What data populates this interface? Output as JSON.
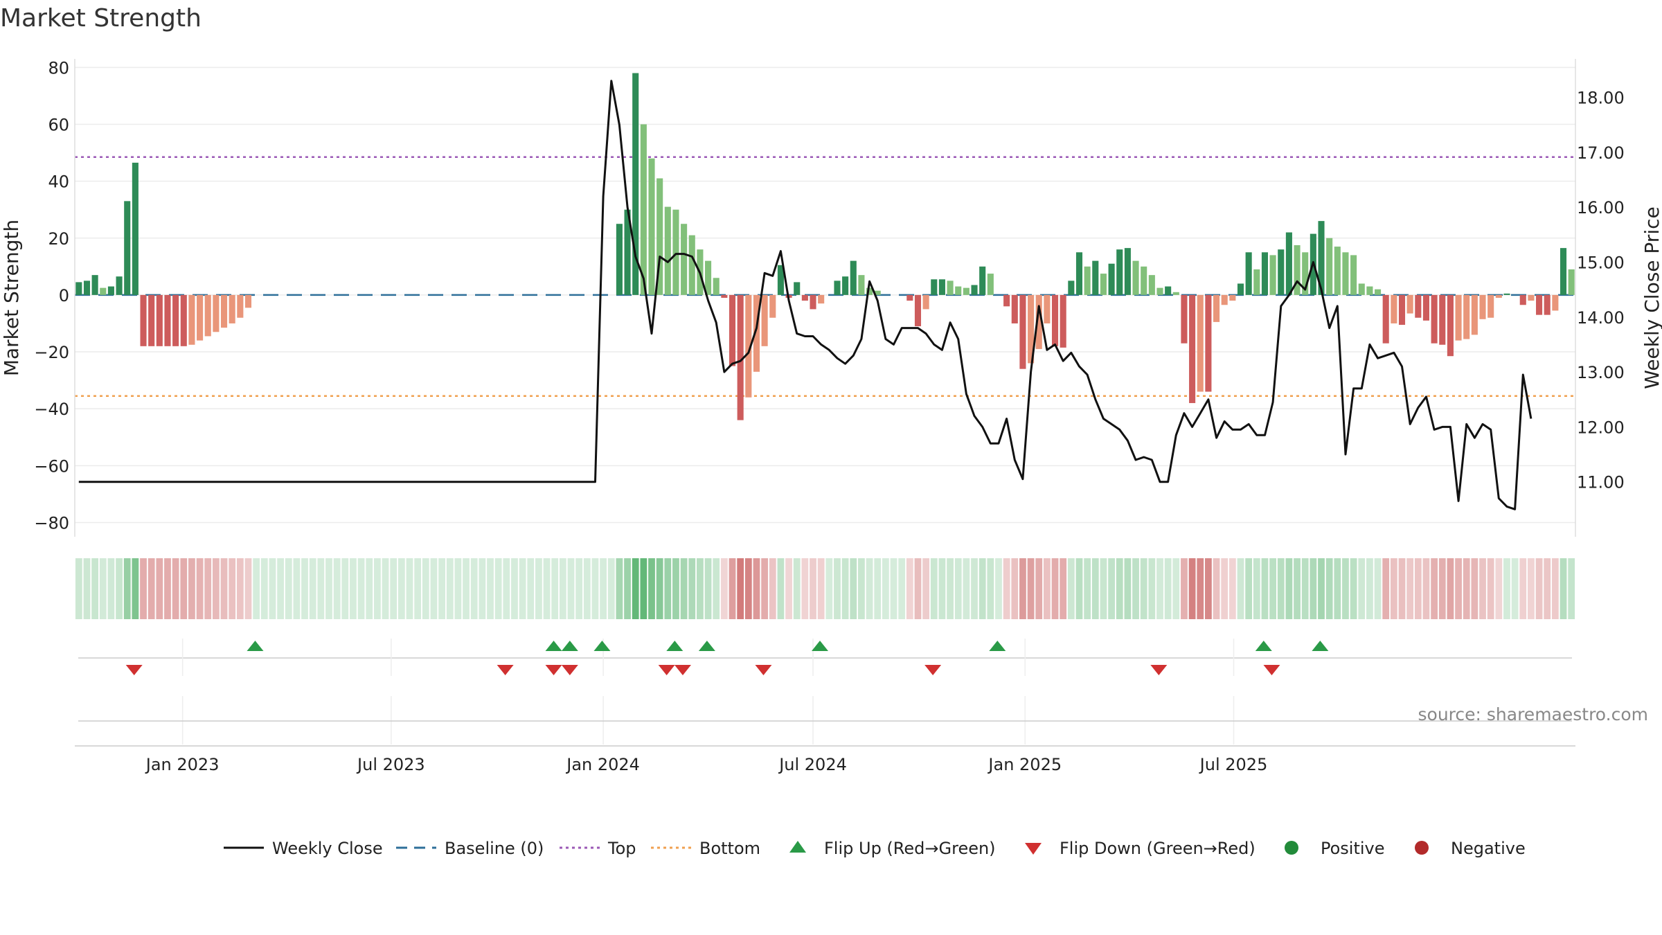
{
  "title": "Market Strength",
  "source": "source: sharemaestro.com",
  "chart_data": {
    "type": "bar",
    "ylabel": "Market Strength",
    "y2label": "Weekly Close Price",
    "ylim": [
      -85,
      83
    ],
    "y2lim": [
      10.0,
      18.7
    ],
    "yticks": [
      80,
      60,
      40,
      20,
      0,
      -20,
      -40,
      -60,
      -80
    ],
    "ytick_labels": [
      "80",
      "60",
      "40",
      "20",
      "0",
      "−20",
      "−40",
      "−60",
      "−80"
    ],
    "y2ticks": [
      18,
      17,
      16,
      15,
      14,
      13,
      12,
      11
    ],
    "y2tick_labels": [
      "18.00",
      "17.00",
      "16.00",
      "15.00",
      "14.00",
      "13.00",
      "12.00",
      "11.00"
    ],
    "x_start": "2022-10-03",
    "xtick_dates": [
      "2023-01-01",
      "2023-07-01",
      "2024-01-01",
      "2024-07-01",
      "2025-01-01",
      "2025-07-01"
    ],
    "xtick_labels": [
      "Jan 2023",
      "Jul 2023",
      "Jan 2024",
      "Jul 2024",
      "Jan 2025",
      "Jul 2025"
    ],
    "top_level": 48.5,
    "bottom_level": -35.5,
    "baseline": 0,
    "strength": [
      4.5,
      5,
      7,
      2.5,
      3,
      6.5,
      33,
      46.5,
      -18,
      -18,
      -18,
      -18,
      -18,
      -18,
      -17.5,
      -16,
      -14.5,
      -13,
      -11.5,
      -10,
      -8,
      -4.5,
      0,
      0,
      0,
      0,
      0,
      0,
      0,
      0,
      0,
      0,
      0,
      0,
      0,
      0,
      0,
      0,
      0,
      0,
      0,
      0,
      0,
      0,
      0,
      0,
      0,
      0,
      0,
      0,
      0,
      0,
      0,
      0,
      0,
      0,
      0,
      0,
      0,
      0,
      0,
      0,
      0,
      0,
      0,
      0,
      0,
      25,
      30,
      78,
      60,
      48,
      41,
      31,
      30,
      25,
      21,
      16,
      12,
      6,
      -1,
      -25,
      -44,
      -36,
      -27,
      -18,
      -8,
      10.5,
      -1,
      4.5,
      -2,
      -5,
      -3,
      0,
      5,
      6.5,
      12,
      7,
      2.5,
      1.5,
      0,
      0,
      0,
      -2,
      -11,
      -5,
      5.5,
      5.5,
      5,
      3,
      2.5,
      3.5,
      10,
      7.5,
      0,
      -4,
      -10,
      -26,
      -24,
      -19,
      -10,
      -18,
      -18.5,
      5,
      15,
      10,
      12,
      7.5,
      11,
      16,
      16.5,
      12,
      10,
      7,
      2.5,
      3,
      1,
      -17,
      -38,
      -34,
      -34,
      -9.5,
      -3.5,
      -2,
      4,
      15,
      9,
      15,
      14,
      16,
      22,
      17.5,
      15,
      21.5,
      26,
      20,
      17,
      15,
      14,
      4,
      3,
      2,
      -17,
      -10,
      -10.5,
      -6.5,
      -8,
      -9,
      -17,
      -17.5,
      -21.5,
      -16,
      -15.5,
      -14,
      -8.5,
      -8,
      -1,
      0.5,
      0,
      -3.5,
      -2,
      -7,
      -7,
      -5.5,
      16.5,
      9
    ],
    "price": [
      11.0,
      11.0,
      11.0,
      11.0,
      11.0,
      11.0,
      11.0,
      11.0,
      11.0,
      11.0,
      11.0,
      11.0,
      11.0,
      11.0,
      11.0,
      11.0,
      11.0,
      11.0,
      11.0,
      11.0,
      11.0,
      11.0,
      11.0,
      11.0,
      11.0,
      11.0,
      11.0,
      11.0,
      11.0,
      11.0,
      11.0,
      11.0,
      11.0,
      11.0,
      11.0,
      11.0,
      11.0,
      11.0,
      11.0,
      11.0,
      11.0,
      11.0,
      11.0,
      11.0,
      11.0,
      11.0,
      11.0,
      11.0,
      11.0,
      11.0,
      11.0,
      11.0,
      11.0,
      11.0,
      11.0,
      11.0,
      11.0,
      11.0,
      11.0,
      11.0,
      11.0,
      11.0,
      11.0,
      11.0,
      11.0,
      16.2,
      18.3,
      17.5,
      16.0,
      15.1,
      14.7,
      13.7,
      15.1,
      15.0,
      15.15,
      15.15,
      15.1,
      14.8,
      14.3,
      13.9,
      13.0,
      13.15,
      13.2,
      13.35,
      13.8,
      14.8,
      14.75,
      15.2,
      14.3,
      13.7,
      13.65,
      13.65,
      13.5,
      13.4,
      13.25,
      13.15,
      13.3,
      13.6,
      14.65,
      14.3,
      13.6,
      13.5,
      13.8,
      13.8,
      13.8,
      13.7,
      13.5,
      13.4,
      13.9,
      13.6,
      12.6,
      12.2,
      12.0,
      11.7,
      11.7,
      12.15,
      11.4,
      11.05,
      13.0,
      14.2,
      13.4,
      13.5,
      13.2,
      13.35,
      13.1,
      12.95,
      12.5,
      12.15,
      12.05,
      11.95,
      11.75,
      11.4,
      11.45,
      11.4,
      11.0,
      11.0,
      11.85,
      12.25,
      12.0,
      12.25,
      12.5,
      11.8,
      12.1,
      11.95,
      11.95,
      12.05,
      11.85,
      11.85,
      12.45,
      14.2,
      14.4,
      14.65,
      14.5,
      15.0,
      14.5,
      13.8,
      14.2,
      11.5,
      12.7,
      12.7,
      13.5,
      13.25,
      13.3,
      13.35,
      13.1,
      12.05,
      12.35,
      12.55,
      11.95,
      12.0,
      12.0,
      10.65,
      12.05,
      11.8,
      12.05,
      11.95,
      10.7,
      10.55,
      10.5,
      12.95,
      12.15
    ],
    "flip_up_dates": [
      "2023-03-05",
      "2023-11-19",
      "2023-12-03",
      "2023-12-31",
      "2024-03-03",
      "2024-03-31",
      "2024-07-07",
      "2024-12-08",
      "2025-07-27",
      "2025-09-14"
    ],
    "flip_down_dates": [
      "2022-11-20",
      "2023-10-08",
      "2023-11-19",
      "2023-12-03",
      "2024-02-25",
      "2024-03-10",
      "2024-05-19",
      "2024-10-13",
      "2025-04-27",
      "2025-08-03"
    ],
    "legend": [
      {
        "label": "Weekly Close",
        "kind": "line",
        "color": "#111111"
      },
      {
        "label": "Baseline (0)",
        "kind": "dash",
        "color": "#2e6f99"
      },
      {
        "label": "Top",
        "kind": "dot",
        "color": "#9b59b6"
      },
      {
        "label": "Bottom",
        "kind": "dot",
        "color": "#f0a050"
      },
      {
        "label": "Flip Up (Red→Green)",
        "kind": "tri-up",
        "color": "#2a9a47"
      },
      {
        "label": "Flip Down (Green→Red)",
        "kind": "tri-down",
        "color": "#d03030"
      },
      {
        "label": "Positive",
        "kind": "circle",
        "color": "#228b3a"
      },
      {
        "label": "Negative",
        "kind": "circle",
        "color": "#b22a2a"
      }
    ],
    "legend_position": "bottom-center"
  }
}
